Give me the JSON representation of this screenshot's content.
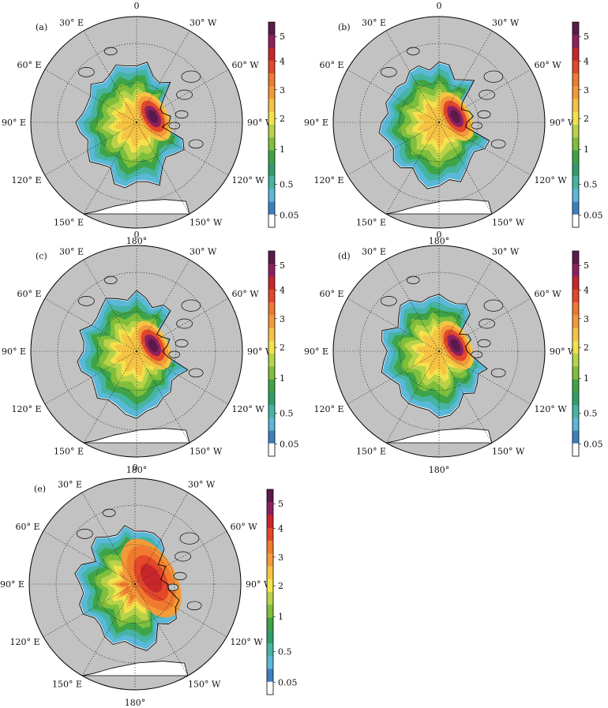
{
  "panels": [
    {
      "id": "a",
      "label": "(a)",
      "variant": 0
    },
    {
      "id": "b",
      "label": "(b)",
      "variant": 1
    },
    {
      "id": "c",
      "label": "(c)",
      "variant": 2
    },
    {
      "id": "d",
      "label": "(d)",
      "variant": 3
    },
    {
      "id": "e",
      "label": "(e)",
      "variant": 4
    }
  ],
  "lon_labels": [
    "0",
    "30° W",
    "60° W",
    "90° W",
    "120° W",
    "150° W",
    "180°",
    "150° E",
    "120° E",
    "90° E",
    "60° E",
    "30° E"
  ],
  "colorbar": {
    "tick_labels": [
      "5",
      "4",
      "3",
      "2",
      "1",
      "0.5",
      "0.05"
    ],
    "colors": [
      "#5a1a4a",
      "#8e2060",
      "#c8262a",
      "#e4472a",
      "#f07a2e",
      "#f39a3a",
      "#f6c343",
      "#f4e24c",
      "#b8d24a",
      "#7fbf3c",
      "#3fa447",
      "#2e9e6a",
      "#46b4a2",
      "#5ab8d8",
      "#3d7fc0",
      "#ffffff"
    ]
  },
  "map_colors": {
    "land": "#c2c2c2",
    "ocean": "#ffffff"
  }
}
